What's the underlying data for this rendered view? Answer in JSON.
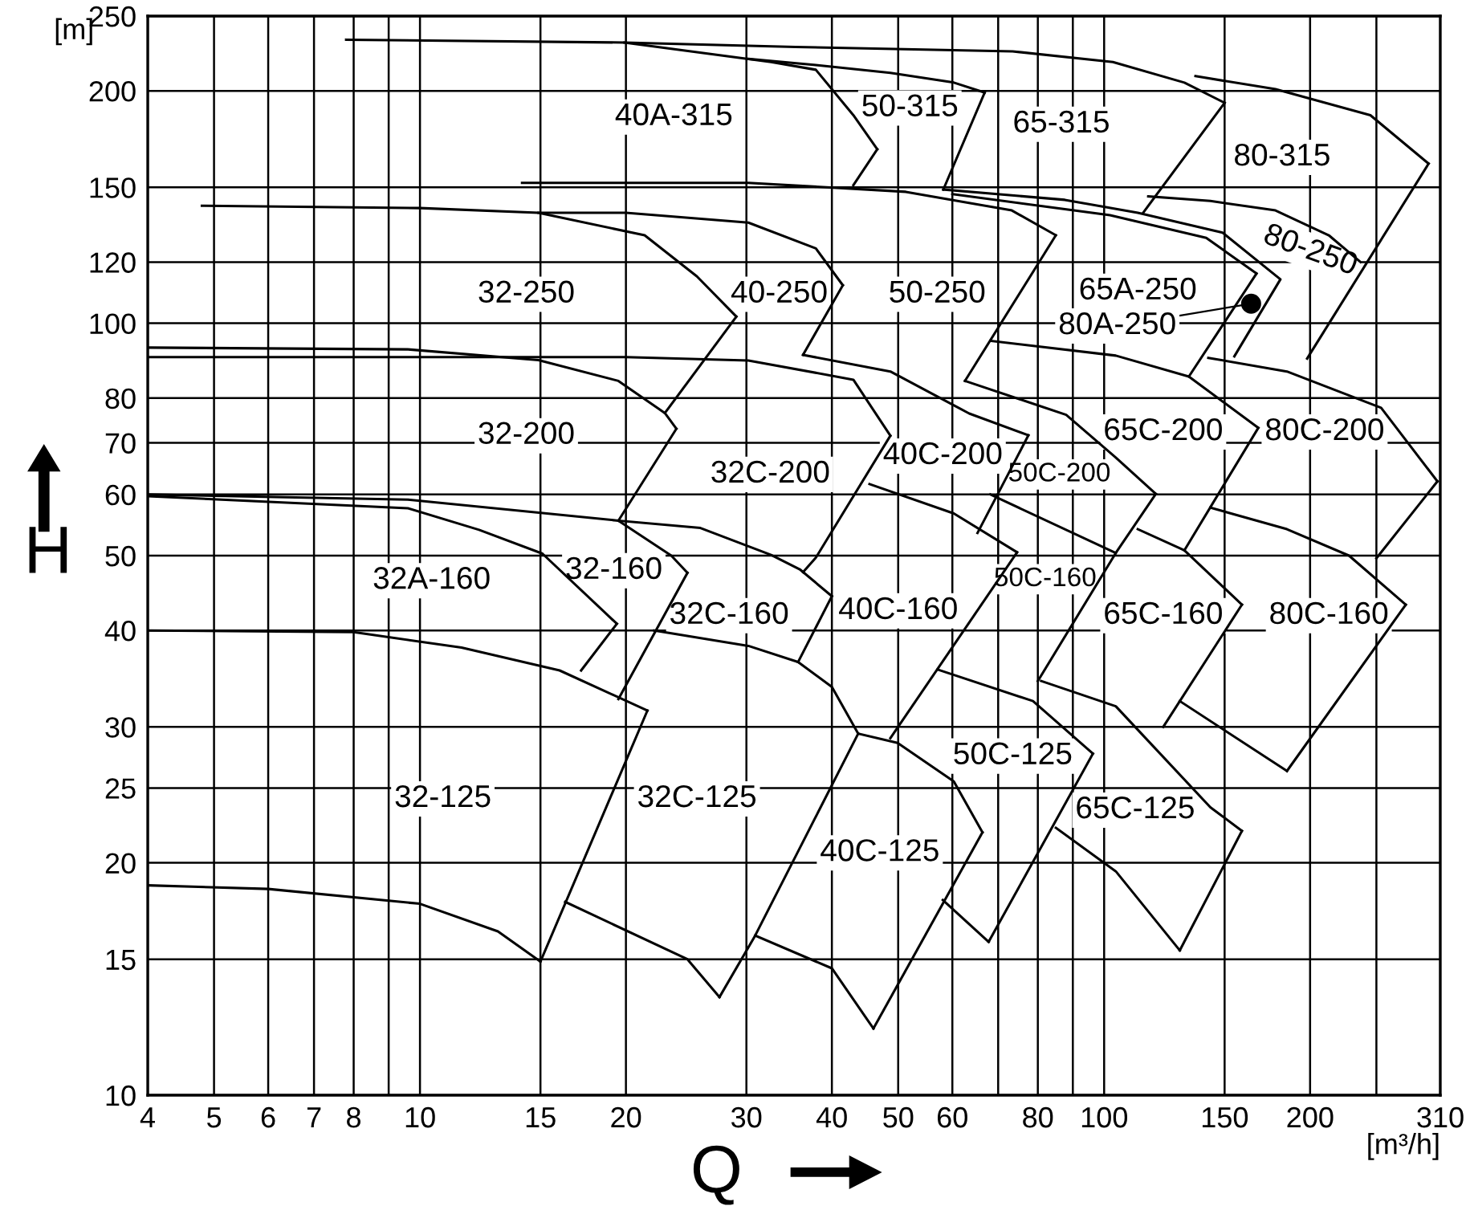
{
  "chart_data": {
    "type": "line",
    "xlabel": "Q",
    "ylabel": "H",
    "log": "xy",
    "grid": true,
    "marker": "none",
    "line_style": "solid",
    "xlim": [
      4,
      310
    ],
    "ylim": [
      10,
      250
    ],
    "xticks": [
      4,
      5,
      6,
      7,
      8,
      {
        "value": 9,
        "label": null
      },
      10,
      15,
      20,
      30,
      40,
      50,
      60,
      {
        "value": 70,
        "label": null
      },
      80,
      {
        "value": 90,
        "label": null
      },
      100,
      150,
      200,
      {
        "value": 250,
        "label": null
      },
      310
    ],
    "yticks": [
      10,
      15,
      20,
      25,
      30,
      40,
      50,
      60,
      70,
      80,
      100,
      120,
      150,
      200,
      250
    ],
    "series": [
      {
        "x": [
          4,
          6,
          10,
          13,
          15
        ],
        "values": [
          18.7,
          18.5,
          17.7,
          16.3,
          14.9
        ],
        "color": "#000000"
      },
      {
        "x": [
          15,
          21.5
        ],
        "values": [
          14.9,
          31.5
        ],
        "color": "#000000"
      },
      {
        "x": [
          4,
          8,
          11.5,
          16,
          21.5
        ],
        "values": [
          40,
          39.8,
          38,
          35.5,
          31.5
        ],
        "color": "#000000"
      },
      {
        "x": [
          4,
          9.6,
          12.2,
          15.1,
          19.4
        ],
        "values": [
          59.7,
          57.6,
          54,
          50.3,
          40.8
        ],
        "color": "#000000"
      },
      {
        "x": [
          19.4,
          17.2
        ],
        "values": [
          40.8,
          35.5
        ],
        "color": "#000000"
      },
      {
        "x": [
          4,
          9.6,
          19.5,
          23.3,
          24.6
        ],
        "values": [
          60,
          59.1,
          55.5,
          50,
          47.5
        ],
        "color": "#000000"
      },
      {
        "x": [
          24.6,
          19.5
        ],
        "values": [
          47.5,
          32.6
        ],
        "color": "#000000"
      },
      {
        "x": [
          19.5,
          25.7,
          32.6,
          35.9,
          40
        ],
        "values": [
          55.5,
          54.3,
          50.1,
          48,
          44.3
        ],
        "color": "#000000"
      },
      {
        "x": [
          40,
          35.7
        ],
        "values": [
          44.3,
          36.4
        ],
        "color": "#000000"
      },
      {
        "x": [
          22,
          30.2,
          35.7,
          40,
          43.7
        ],
        "values": [
          40,
          38.2,
          36.4,
          33.8,
          29.4
        ],
        "color": "#000000"
      },
      {
        "x": [
          16.3,
          24.6,
          27.4
        ],
        "values": [
          17.8,
          15,
          13.4
        ],
        "color": "#000000"
      },
      {
        "x": [
          27.4,
          30.9,
          43.7
        ],
        "values": [
          13.4,
          16.1,
          29.4
        ],
        "color": "#000000"
      },
      {
        "x": [
          30.9,
          40,
          46
        ],
        "values": [
          16.1,
          14.6,
          12.2
        ],
        "color": "#000000"
      },
      {
        "x": [
          46,
          66.4
        ],
        "values": [
          12.2,
          21.9
        ],
        "color": "#000000"
      },
      {
        "x": [
          43.7,
          49.9,
          60.3,
          66.4
        ],
        "values": [
          29.4,
          28.6,
          25.5,
          21.9
        ],
        "color": "#000000"
      },
      {
        "x": [
          74.6,
          48.7
        ],
        "values": [
          50.5,
          29
        ],
        "color": "#000000"
      },
      {
        "x": [
          57.1,
          78.7,
          96.3
        ],
        "values": [
          35.6,
          32.4,
          27.7
        ],
        "color": "#000000"
      },
      {
        "x": [
          96.3,
          67.8
        ],
        "values": [
          27.7,
          15.8
        ],
        "color": "#000000"
      },
      {
        "x": [
          58.1,
          67.8
        ],
        "values": [
          17.9,
          15.8
        ],
        "color": "#000000"
      },
      {
        "x": [
          80.9,
          104,
          143,
          159
        ],
        "values": [
          34.4,
          31.9,
          23.6,
          22
        ],
        "color": "#000000"
      },
      {
        "x": [
          159,
          129
        ],
        "values": [
          22,
          15.4
        ],
        "color": "#000000"
      },
      {
        "x": [
          85,
          104,
          129
        ],
        "values": [
          22.2,
          19.5,
          15.4
        ],
        "color": "#000000"
      },
      {
        "x": [
          45.4,
          60.3,
          74.6
        ],
        "values": [
          61.9,
          56.7,
          50.5
        ],
        "color": "#000000"
      },
      {
        "x": [
          4,
          20,
          30.2,
          43,
          48.7
        ],
        "values": [
          90.4,
          90.4,
          89.5,
          84.5,
          71.5
        ],
        "color": "#000000"
      },
      {
        "x": [
          48.7,
          37.9,
          36.3
        ],
        "values": [
          71.5,
          49.7,
          47.6
        ],
        "color": "#000000"
      },
      {
        "x": [
          4,
          9.6,
          14.9,
          19.5,
          22.8,
          23.7
        ],
        "values": [
          93,
          92.5,
          89.6,
          84.2,
          76.5,
          73
        ],
        "color": "#000000"
      },
      {
        "x": [
          23.7,
          19.5
        ],
        "values": [
          73,
          55.5
        ],
        "color": "#000000"
      },
      {
        "x": [
          4.8,
          10,
          14.9,
          21.3,
          25.4,
          29
        ],
        "values": [
          142,
          141,
          139,
          130,
          115,
          102
        ],
        "color": "#000000"
      },
      {
        "x": [
          29,
          22.8
        ],
        "values": [
          102,
          76.5
        ],
        "color": "#000000"
      },
      {
        "x": [
          14.9,
          20,
          30.2,
          37.9,
          41.5
        ],
        "values": [
          139,
          139,
          135,
          125,
          112
        ],
        "color": "#000000"
      },
      {
        "x": [
          41.5,
          36.3
        ],
        "values": [
          112,
          91
        ],
        "color": "#000000"
      },
      {
        "x": [
          36.3,
          48.7,
          63.5,
          77.5
        ],
        "values": [
          91,
          86.6,
          76.4,
          71.6
        ],
        "color": "#000000"
      },
      {
        "x": [
          77.5,
          65.3
        ],
        "values": [
          71.6,
          53.5
        ],
        "color": "#000000"
      },
      {
        "x": [
          14.1,
          30.2,
          51.3,
          73.3,
          85
        ],
        "values": [
          152,
          152,
          148,
          140,
          130
        ],
        "color": "#000000"
      },
      {
        "x": [
          85,
          62.6
        ],
        "values": [
          130,
          84.2
        ],
        "color": "#000000"
      },
      {
        "x": [
          62.6,
          88,
          104,
          119
        ],
        "values": [
          84.2,
          76.1,
          67,
          60.1
        ],
        "color": "#000000"
      },
      {
        "x": [
          119,
          104,
          80
        ],
        "values": [
          60.1,
          50.4,
          34.4
        ],
        "color": "#000000"
      },
      {
        "x": [
          68.2,
          104
        ],
        "values": [
          60,
          50.4
        ],
        "color": "#000000"
      },
      {
        "x": [
          60,
          102,
          141,
          167
        ],
        "values": [
          147,
          138,
          129,
          116
        ],
        "color": "#000000"
      },
      {
        "x": [
          167,
          133
        ],
        "values": [
          116,
          85.3
        ],
        "color": "#000000"
      },
      {
        "x": [
          68.2,
          104,
          133,
          168
        ],
        "values": [
          94.9,
          90.8,
          85.3,
          73.2
        ],
        "color": "#000000"
      },
      {
        "x": [
          168,
          131
        ],
        "values": [
          73.2,
          50.8
        ],
        "color": "#000000"
      },
      {
        "x": [
          112,
          131,
          159
        ],
        "values": [
          54.1,
          50.8,
          43.2
        ],
        "color": "#000000"
      },
      {
        "x": [
          159,
          122
        ],
        "values": [
          43.2,
          30
        ],
        "color": "#000000"
      },
      {
        "x": [
          143,
          185,
          228,
          276
        ],
        "values": [
          57.7,
          54.1,
          50,
          43.2
        ],
        "color": "#000000"
      },
      {
        "x": [
          276,
          185
        ],
        "values": [
          43.2,
          26.3
        ],
        "color": "#000000"
      },
      {
        "x": [
          129,
          185
        ],
        "values": [
          32.4,
          26.3
        ],
        "color": "#000000"
      },
      {
        "x": [
          142,
          185,
          254,
          307
        ],
        "values": [
          90.2,
          86.6,
          77.7,
          62.4
        ],
        "color": "#000000"
      },
      {
        "x": [
          307,
          250
        ],
        "values": [
          62.4,
          49.6
        ],
        "color": "#000000"
      },
      {
        "x": [
          58.2,
          87.6,
          112,
          149,
          181,
          155
        ],
        "values": [
          149,
          144.5,
          139,
          131,
          114,
          90.6
        ],
        "color": "#000000"
      },
      {
        "x": [
          116,
          143,
          178,
          213,
          237
        ],
        "values": [
          146,
          144,
          140,
          130,
          120
        ],
        "color": "#000000"
      },
      {
        "x": [
          298,
          198
        ],
        "values": [
          161,
          90
        ],
        "color": "#000000"
      },
      {
        "x": [
          136,
          178,
          245,
          298
        ],
        "values": [
          209,
          201,
          186,
          161
        ],
        "color": "#000000"
      },
      {
        "x": [
          19.9,
          35.4,
          73.5,
          103,
          131,
          150
        ],
        "values": [
          231,
          228,
          225,
          218,
          205,
          193
        ],
        "color": "#000000"
      },
      {
        "x": [
          150,
          114
        ],
        "values": [
          193,
          139
        ],
        "color": "#000000"
      },
      {
        "x": [
          7.8,
          19.9,
          32.6,
          37.9,
          43,
          46.6
        ],
        "values": [
          233,
          231,
          218,
          213,
          186,
          168
        ],
        "color": "#000000"
      },
      {
        "x": [
          46.6,
          43
        ],
        "values": [
          168,
          151
        ],
        "color": "#000000"
      },
      {
        "x": [
          30.2,
          37.9,
          48.7,
          60.3,
          66.9
        ],
        "values": [
          220,
          216,
          211,
          205,
          199
        ],
        "color": "#000000"
      },
      {
        "x": [
          66.9,
          58.2
        ],
        "values": [
          199,
          149
        ],
        "color": "#000000"
      },
      {
        "type": "scatter",
        "marker": "circle",
        "x": [
          164
        ],
        "values": [
          106
        ],
        "color": "#000000"
      }
    ],
    "annotations": [
      "[m]",
      "[m³/h]",
      "40A-315",
      "50-315",
      "65-315",
      "80-315",
      "80-250",
      "32-250",
      "40-250",
      "50-250",
      "65A-250",
      {
        "text": "80A-250",
        "x": 164,
        "y": 106
      },
      "32-200",
      "32C-200",
      "40C-200",
      "50C-200",
      "65C-200",
      "80C-200",
      "32A-160",
      "32-160",
      "32C-160",
      "40C-160",
      "50C-160",
      "65C-160",
      "80C-160",
      "32-125",
      "32C-125",
      "40C-125",
      "50C-125",
      "65C-125"
    ]
  }
}
